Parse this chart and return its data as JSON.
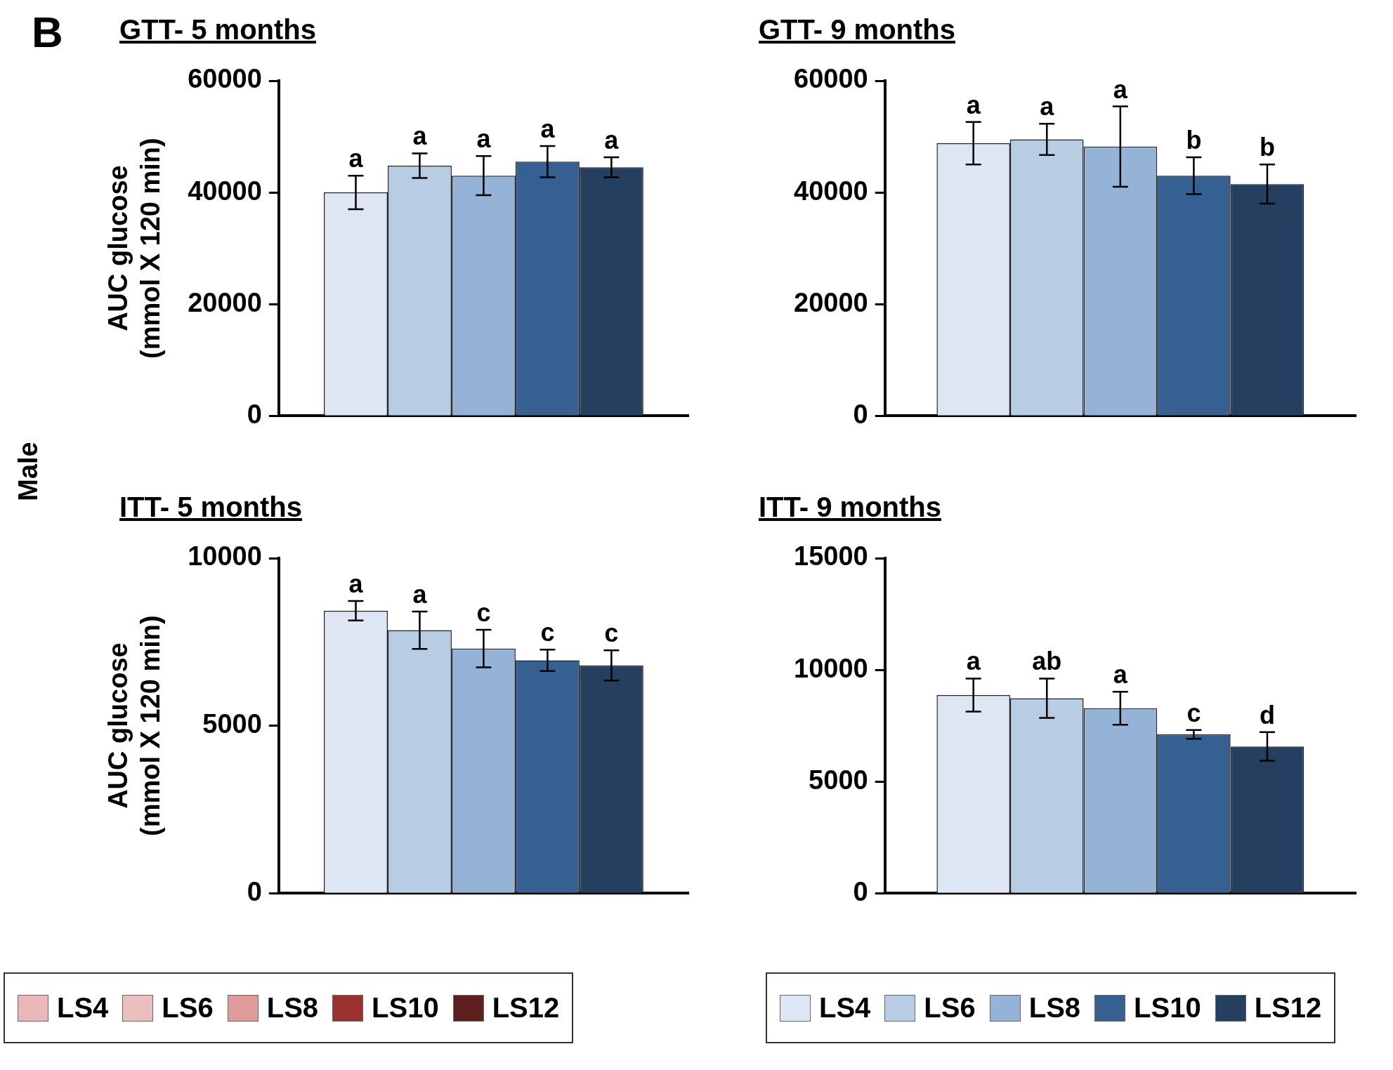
{
  "chart_data": [
    {
      "type": "bar",
      "title": "GTT- 5 months",
      "ylabel": "AUC glucose\n(mmol X 120 min)",
      "annotations": [
        "B",
        "Male"
      ],
      "categories": [
        null
      ],
      "ylim": [
        0,
        60000
      ],
      "yticks": [
        0,
        20000,
        40000,
        60000
      ],
      "grid": false,
      "series": [
        {
          "color": "#dde6f2",
          "values": [
            40000
          ],
          "errors": [
            3000
          ],
          "value_labels": [
            "a"
          ]
        },
        {
          "color": "#b8cce4",
          "values": [
            44800
          ],
          "errors": [
            2200
          ],
          "value_labels": [
            "a"
          ]
        },
        {
          "color": "#95b3d7",
          "values": [
            43000
          ],
          "errors": [
            3500
          ],
          "value_labels": [
            "a"
          ]
        },
        {
          "color": "#366092",
          "values": [
            45500
          ],
          "errors": [
            2800
          ],
          "value_labels": [
            "a"
          ]
        },
        {
          "color": "#243f60",
          "values": [
            44500
          ],
          "errors": [
            1800
          ],
          "value_labels": [
            "a"
          ]
        }
      ]
    },
    {
      "type": "bar",
      "title": "GTT- 9 months",
      "categories": [
        null
      ],
      "ylim": [
        0,
        60000
      ],
      "yticks": [
        0,
        20000,
        40000,
        60000
      ],
      "grid": false,
      "series": [
        {
          "color": "#dde6f2",
          "values": [
            48800
          ],
          "errors": [
            3800
          ],
          "value_labels": [
            "a"
          ]
        },
        {
          "color": "#b8cce4",
          "values": [
            49500
          ],
          "errors": [
            2800
          ],
          "value_labels": [
            "a"
          ]
        },
        {
          "color": "#95b3d7",
          "values": [
            48200
          ],
          "errors": [
            7200
          ],
          "value_labels": [
            "a"
          ]
        },
        {
          "color": "#366092",
          "values": [
            43000
          ],
          "errors": [
            3300
          ],
          "value_labels": [
            "b"
          ]
        },
        {
          "color": "#243f60",
          "values": [
            41500
          ],
          "errors": [
            3500
          ],
          "value_labels": [
            "b"
          ]
        }
      ]
    },
    {
      "type": "bar",
      "title": "ITT- 5 months",
      "ylabel": "AUC glucose\n(mmol X 120 min)",
      "categories": [
        null
      ],
      "ylim": [
        0,
        10000
      ],
      "yticks": [
        0,
        5000,
        10000
      ],
      "grid": false,
      "series": [
        {
          "color": "#dde6f2",
          "values": [
            8430
          ],
          "errors": [
            290
          ],
          "value_labels": [
            "a"
          ]
        },
        {
          "color": "#b8cce4",
          "values": [
            7850
          ],
          "errors": [
            560
          ],
          "value_labels": [
            "a"
          ]
        },
        {
          "color": "#95b3d7",
          "values": [
            7300
          ],
          "errors": [
            560
          ],
          "value_labels": [
            "c"
          ]
        },
        {
          "color": "#366092",
          "values": [
            6950
          ],
          "errors": [
            320
          ],
          "value_labels": [
            "c"
          ]
        },
        {
          "color": "#243f60",
          "values": [
            6800
          ],
          "errors": [
            450
          ],
          "value_labels": [
            "c"
          ]
        }
      ]
    },
    {
      "type": "bar",
      "title": "ITT- 9 months",
      "categories": [
        null
      ],
      "ylim": [
        0,
        15000
      ],
      "yticks": [
        0,
        5000,
        10000,
        15000
      ],
      "grid": false,
      "legend": "bottom",
      "series": [
        {
          "name": "LS4",
          "color": "#dde6f2",
          "values": [
            8870
          ],
          "errors": [
            740
          ],
          "value_labels": [
            "a"
          ]
        },
        {
          "name": "LS6",
          "color": "#b8cce4",
          "values": [
            8730
          ],
          "errors": [
            880
          ],
          "value_labels": [
            "ab"
          ]
        },
        {
          "name": "LS8",
          "color": "#95b3d7",
          "values": [
            8280
          ],
          "errors": [
            740
          ],
          "value_labels": [
            "a"
          ]
        },
        {
          "name": "LS10",
          "color": "#366092",
          "values": [
            7110
          ],
          "errors": [
            200
          ],
          "value_labels": [
            "c"
          ]
        },
        {
          "name": "LS12",
          "color": "#243f60",
          "values": [
            6570
          ],
          "errors": [
            640
          ],
          "value_labels": [
            "d"
          ]
        }
      ]
    },
    {
      "type": "other",
      "series": [
        {
          "name": "LS4",
          "color": "#eab8b8"
        },
        {
          "name": "LS6",
          "color": "#ecbfbf"
        },
        {
          "name": "LS8",
          "color": "#df9a9a"
        },
        {
          "name": "LS10",
          "color": "#9b3030"
        },
        {
          "name": "LS12",
          "color": "#5e1e1e"
        }
      ]
    }
  ]
}
